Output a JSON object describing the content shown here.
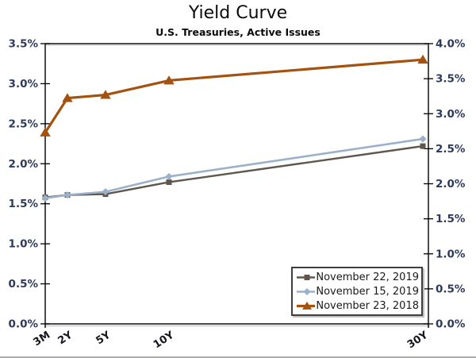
{
  "header": {
    "title": "Yield Curve",
    "subtitle": "U.S. Treasuries, Active Issues"
  },
  "chart_data": {
    "type": "line",
    "title": "Yield Curve",
    "subtitle": "U.S. Treasuries, Active Issues",
    "categories": [
      "3M",
      "2Y",
      "5Y",
      "10Y",
      "30Y"
    ],
    "category_years": [
      0.25,
      2,
      5,
      10,
      30
    ],
    "x_scale": "linear-in-years",
    "grid": false,
    "plot_background": "#ffffff",
    "axes": {
      "left": {
        "min": 0.0,
        "max": 3.5,
        "step": 0.5,
        "tick_labels": [
          "0.0%",
          "0.5%",
          "1.0%",
          "1.5%",
          "2.0%",
          "2.5%",
          "3.0%",
          "3.5%"
        ]
      },
      "right": {
        "min": 0.0,
        "max": 4.0,
        "step": 0.5,
        "tick_labels": [
          "0.0%",
          "0.5%",
          "1.0%",
          "1.5%",
          "2.0%",
          "2.5%",
          "3.0%",
          "3.5%",
          "4.0%"
        ]
      }
    },
    "series": [
      {
        "name": "November 22, 2019",
        "color": "#5f564e",
        "marker": "square",
        "line_width": 2.4,
        "axis": "left",
        "values": [
          1.58,
          1.61,
          1.62,
          1.77,
          2.22
        ]
      },
      {
        "name": "November 15, 2019",
        "color": "#9bb1c9",
        "marker": "diamond",
        "line_width": 2.6,
        "axis": "left",
        "values": [
          1.57,
          1.61,
          1.65,
          1.84,
          2.31
        ]
      },
      {
        "name": "November 23, 2018",
        "color": "#a4520f",
        "marker": "triangle",
        "line_width": 3.2,
        "axis": "left",
        "values": [
          2.39,
          2.82,
          2.86,
          3.04,
          3.3
        ]
      }
    ],
    "legend": {
      "position": "bottom-right",
      "border": true,
      "entries": [
        "November 22, 2019",
        "November 15, 2019",
        "November 23, 2018"
      ]
    }
  },
  "colors": {
    "axis_line": "#000000",
    "plot_shadow": "#c9c9c9",
    "y_tick_label": "#2e3a5c",
    "x_tick_label": "#16161e",
    "legend_border": "#3f3f3f",
    "legend_text": "#1a1a1a",
    "background": "#ffffff"
  }
}
